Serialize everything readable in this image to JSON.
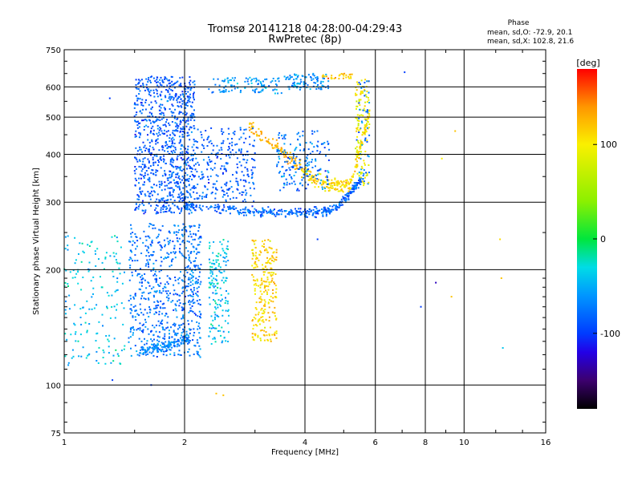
{
  "title": {
    "line1": "Tromsø 20141218 04:28:00-04:29:43",
    "line2": "RwPretec (8p)"
  },
  "phase_info": {
    "heading": "Phase",
    "line1": "mean, sd,O: -72.9, 20.1",
    "line2": "mean, sd,X: 102.8, 21.6"
  },
  "chart_data": {
    "type": "scatter",
    "title": "Tromsø 20141218 04:28:00-04:29:43",
    "subtitle": "RwPretec (8p)",
    "xlabel": "Frequency [MHz]",
    "ylabel": "Stationary phase Virtual Height [km]",
    "x_scale": "log",
    "y_scale": "log",
    "xlim": [
      1,
      16
    ],
    "ylim": [
      75,
      750
    ],
    "x_ticks": [
      1,
      2,
      4,
      6,
      8,
      10,
      16
    ],
    "x_tick_labels": [
      "1",
      "2",
      "4",
      "6",
      "8",
      "10",
      "16"
    ],
    "y_ticks": [
      75,
      100,
      200,
      300,
      400,
      500,
      600,
      750
    ],
    "y_tick_labels": [
      "75",
      "100",
      "200",
      "300",
      "400",
      "500",
      "600",
      "750"
    ],
    "grid": true,
    "colorbar": {
      "label": "[deg]",
      "range": [
        -180,
        180
      ],
      "ticks": [
        -100,
        0,
        100
      ],
      "tick_labels": [
        "-100",
        "0",
        "100"
      ],
      "colormap": "rainbow"
    },
    "traces": [
      {
        "name": "",
        "kind": "O-F-layer-floor",
        "x_range": [
          2.0,
          5.6
        ],
        "y_range": [
          285,
          320
        ],
        "phase_mean": -72.9,
        "phase_sd": 20.1
      },
      {
        "name": "",
        "kind": "O-F-layer-column",
        "x_range": [
          1.5,
          2.1
        ],
        "y_range": [
          280,
          640
        ],
        "phase_mean": -85,
        "phase_sd": 20
      },
      {
        "name": "",
        "kind": "O-E-layer-column",
        "x_range": [
          1.5,
          2.2
        ],
        "y_range": [
          120,
          260
        ],
        "phase_mean": -75,
        "phase_sd": 20
      },
      {
        "name": "",
        "kind": "X-F-layer-trace",
        "x_range": [
          2.9,
          5.8
        ],
        "y_range": [
          330,
          480
        ],
        "phase_mean": 102.8,
        "phase_sd": 21.6
      },
      {
        "name": "",
        "kind": "X-E-column",
        "x_range": [
          3.0,
          3.4
        ],
        "y_range": [
          130,
          240
        ],
        "phase_mean": 115,
        "phase_sd": 20
      },
      {
        "name": "",
        "kind": "top-band",
        "x_range": [
          2.3,
          4.6
        ],
        "y_range": [
          560,
          640
        ],
        "phase_mean": -60,
        "phase_sd": 20
      },
      {
        "name": "",
        "kind": "low-sweep",
        "x_range": [
          1.0,
          1.4
        ],
        "y_range": [
          112,
          240
        ],
        "phase_mean": -40,
        "phase_sd": 20
      },
      {
        "name": "",
        "kind": "E-layer-trace",
        "x_range": [
          2.3,
          2.6
        ],
        "y_range": [
          130,
          230
        ],
        "phase_mean": -40,
        "phase_sd": 25
      }
    ],
    "isolated_points": [
      {
        "x": 1.3,
        "y": 560,
        "phase": -100
      },
      {
        "x": 1.32,
        "y": 103,
        "phase": -100
      },
      {
        "x": 1.65,
        "y": 100,
        "phase": -100
      },
      {
        "x": 2.4,
        "y": 95,
        "phase": 120
      },
      {
        "x": 2.5,
        "y": 94,
        "phase": 120
      },
      {
        "x": 4.3,
        "y": 240,
        "phase": -100
      },
      {
        "x": 7.8,
        "y": 160,
        "phase": -100
      },
      {
        "x": 8.5,
        "y": 185,
        "phase": -130
      },
      {
        "x": 8.8,
        "y": 390,
        "phase": 100
      },
      {
        "x": 9.5,
        "y": 460,
        "phase": 120
      },
      {
        "x": 9.3,
        "y": 170,
        "phase": 120
      },
      {
        "x": 12.5,
        "y": 125,
        "phase": -40
      },
      {
        "x": 12.3,
        "y": 240,
        "phase": 110
      },
      {
        "x": 12.4,
        "y": 190,
        "phase": 120
      },
      {
        "x": 7.1,
        "y": 655,
        "phase": -100
      }
    ]
  }
}
